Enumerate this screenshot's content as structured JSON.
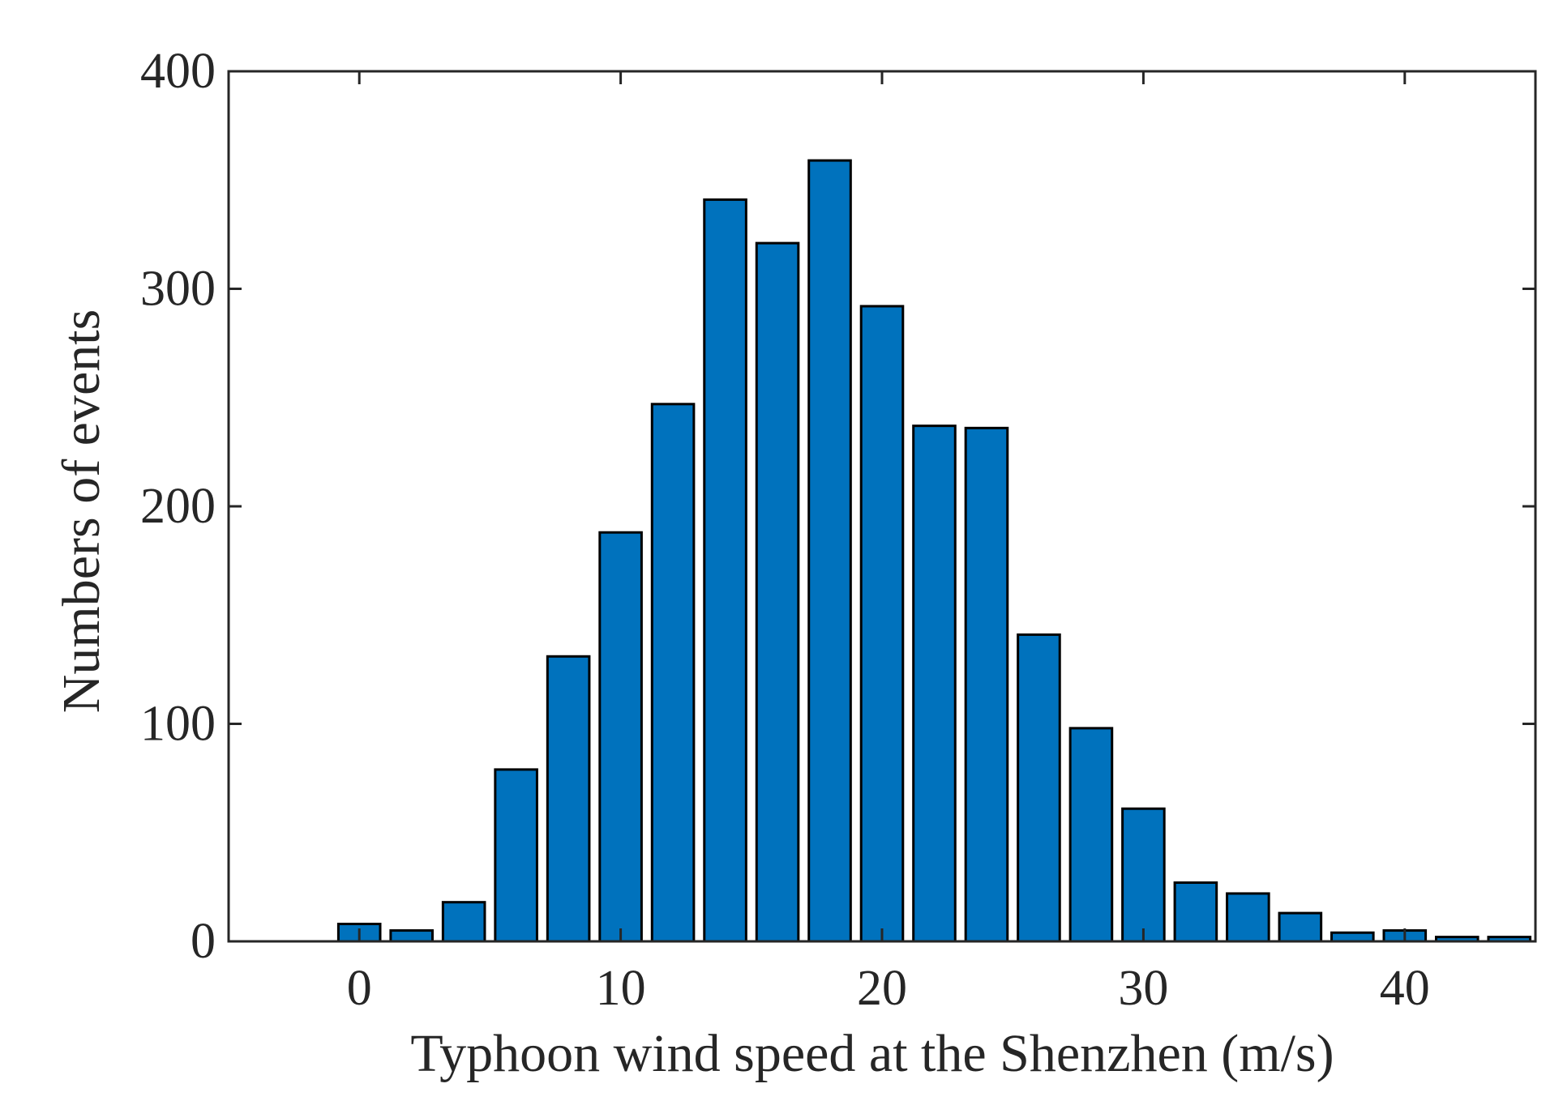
{
  "chart_data": {
    "type": "bar",
    "title": "",
    "xlabel": "Typhoon wind speed at the Shenzhen (m/s)",
    "ylabel": "Numbers of events",
    "xlim": [
      -5,
      45
    ],
    "ylim": [
      0,
      400
    ],
    "xticks": [
      0,
      10,
      20,
      30,
      40
    ],
    "yticks": [
      0,
      100,
      200,
      300,
      400
    ],
    "grid": false,
    "bar_color": "#0072BD",
    "bar_edge_color": "#000000",
    "x": [
      0,
      2,
      4,
      6,
      8,
      10,
      12,
      14,
      16,
      18,
      20,
      22,
      24,
      26,
      28,
      30,
      32,
      34,
      36,
      38,
      40,
      42,
      44
    ],
    "values": [
      8,
      5,
      18,
      79,
      131,
      188,
      247,
      341,
      321,
      359,
      292,
      237,
      236,
      141,
      98,
      61,
      27,
      22,
      13,
      4,
      5,
      2,
      2
    ]
  }
}
